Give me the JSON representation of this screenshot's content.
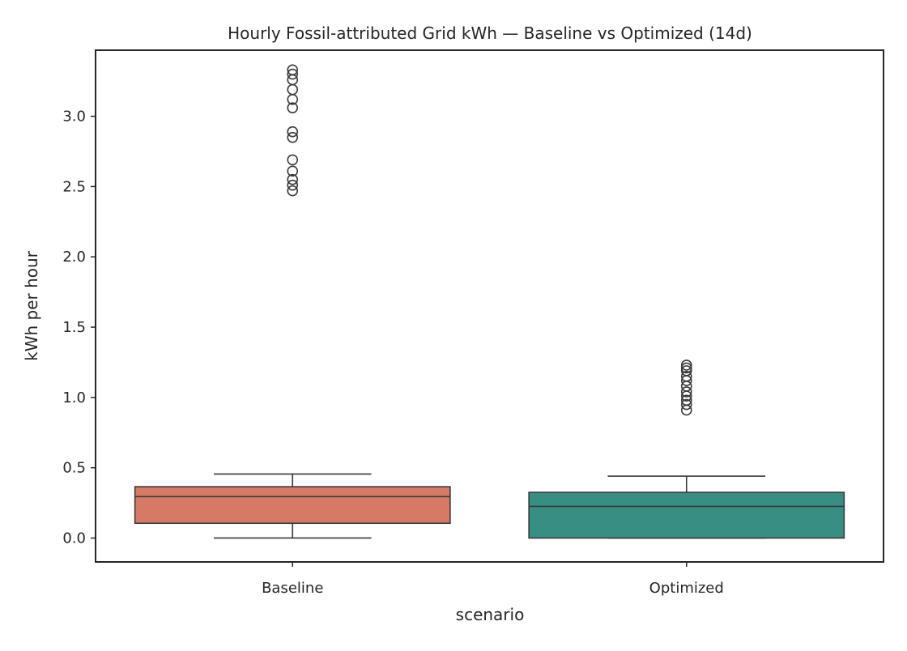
{
  "chart_data": {
    "type": "box",
    "title": "Hourly Fossil-attributed Grid kWh — Baseline vs Optimized (14d)",
    "xlabel": "scenario",
    "ylabel": "kWh per hour",
    "ylim": [
      -0.17,
      3.47
    ],
    "yticks": [
      0.0,
      0.5,
      1.0,
      1.5,
      2.0,
      2.5,
      3.0
    ],
    "ytick_labels": [
      "0.0",
      "0.5",
      "1.0",
      "1.5",
      "2.0",
      "2.5",
      "3.0"
    ],
    "grid": false,
    "categories": [
      "Baseline",
      "Optimized"
    ],
    "series": [
      {
        "category": "Baseline",
        "color": "#d67a65",
        "whisker_low": 0.0,
        "q1": 0.105,
        "median": 0.295,
        "q3": 0.365,
        "whisker_high": 0.455,
        "outliers": [
          2.47,
          2.51,
          2.55,
          2.61,
          2.69,
          2.85,
          2.89,
          3.06,
          3.12,
          3.19,
          3.26,
          3.3,
          3.33
        ]
      },
      {
        "category": "Optimized",
        "color": "#388e82",
        "whisker_low": 0.0,
        "q1": 0.0,
        "median": 0.225,
        "q3": 0.325,
        "whisker_high": 0.44,
        "outliers": [
          0.91,
          0.95,
          0.98,
          1.01,
          1.04,
          1.08,
          1.12,
          1.15,
          1.19,
          1.21,
          1.23
        ]
      }
    ]
  }
}
